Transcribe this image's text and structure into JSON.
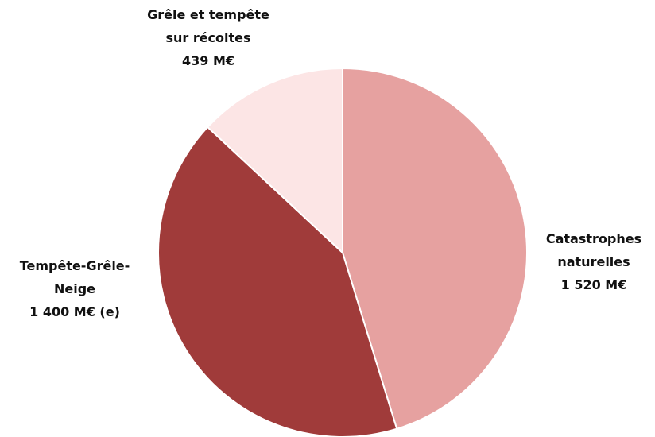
{
  "chart_data": {
    "type": "pie",
    "categories": [
      "Catastrophes naturelles",
      "Tempête-Grêle-Neige",
      "Grêle et tempête sur récoltes"
    ],
    "values": [
      1520,
      1400,
      439
    ],
    "value_labels": [
      "1 520 M€",
      "1 400 M€ (e)",
      "439 M€"
    ],
    "colors": [
      "#e6a1a0",
      "#a03b3a",
      "#fce5e5"
    ]
  }
}
